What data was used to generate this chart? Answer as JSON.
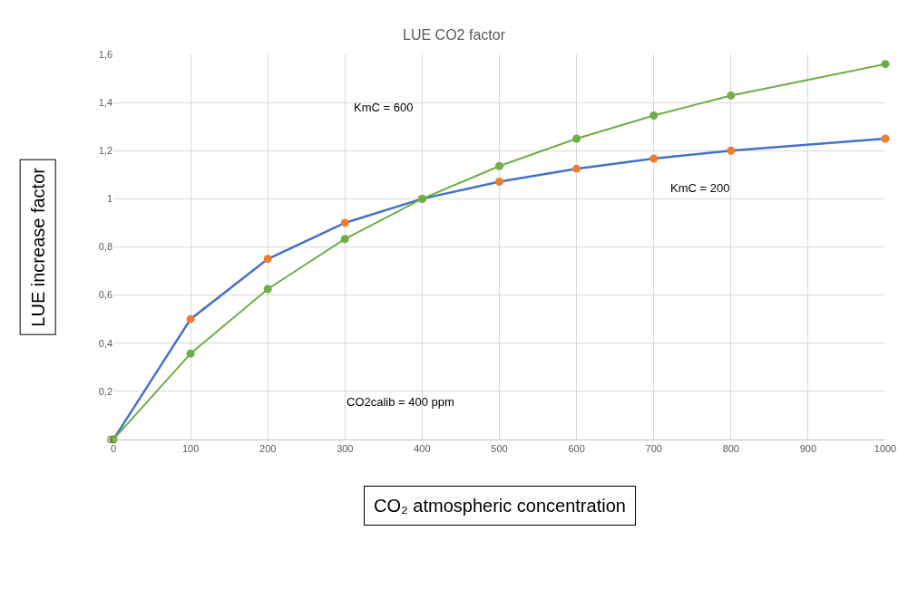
{
  "chart_data": {
    "type": "line",
    "title": "LUE CO2 factor",
    "xlabel": "CO₂ atmospheric concentration",
    "ylabel": "LUE increase factor",
    "series": [
      {
        "color": "#4472c4",
        "colors": [
          "#ed7d31",
          "#ed7d31",
          "#ed7d31",
          "#ed7d31",
          "#ed7d31",
          "#ed7d31",
          "#ed7d31",
          "#ed7d31",
          "#ed7d31",
          "#ed7d31"
        ],
        "x": [
          0,
          100,
          200,
          300,
          400,
          500,
          600,
          700,
          800,
          1000
        ],
        "values": [
          0,
          0.5,
          0.75,
          0.9,
          1.0,
          1.071,
          1.125,
          1.167,
          1.2,
          1.25
        ]
      },
      {
        "color": "#70ad47",
        "x": [
          0,
          100,
          200,
          300,
          400,
          500,
          600,
          700,
          800,
          1000
        ],
        "values": [
          0,
          0.357,
          0.625,
          0.833,
          1.0,
          1.136,
          1.25,
          1.346,
          1.429,
          1.56
        ]
      }
    ],
    "annotations": [
      "KmC = 600",
      "KmC = 200",
      "CO2calib = 400 ppm"
    ],
    "xlim": [
      0,
      1000
    ],
    "xticks": [
      0,
      100,
      200,
      300,
      400,
      500,
      600,
      700,
      800,
      900,
      1000
    ],
    "ylim": [
      0,
      1.6
    ],
    "yticks": [
      0,
      {
        "value": 0.2,
        "label": "0,2"
      },
      {
        "value": 0.4,
        "label": "0,4"
      },
      {
        "value": 0.6,
        "label": "0,6"
      },
      {
        "value": 0.8,
        "label": "0,8"
      },
      1,
      {
        "value": 1.2,
        "label": "1,2"
      },
      {
        "value": 1.4,
        "label": "1,4"
      },
      {
        "value": 1.6,
        "label": "1,6"
      }
    ],
    "grid": true,
    "marker": "circle",
    "line_style": "solid",
    "legend": false
  }
}
